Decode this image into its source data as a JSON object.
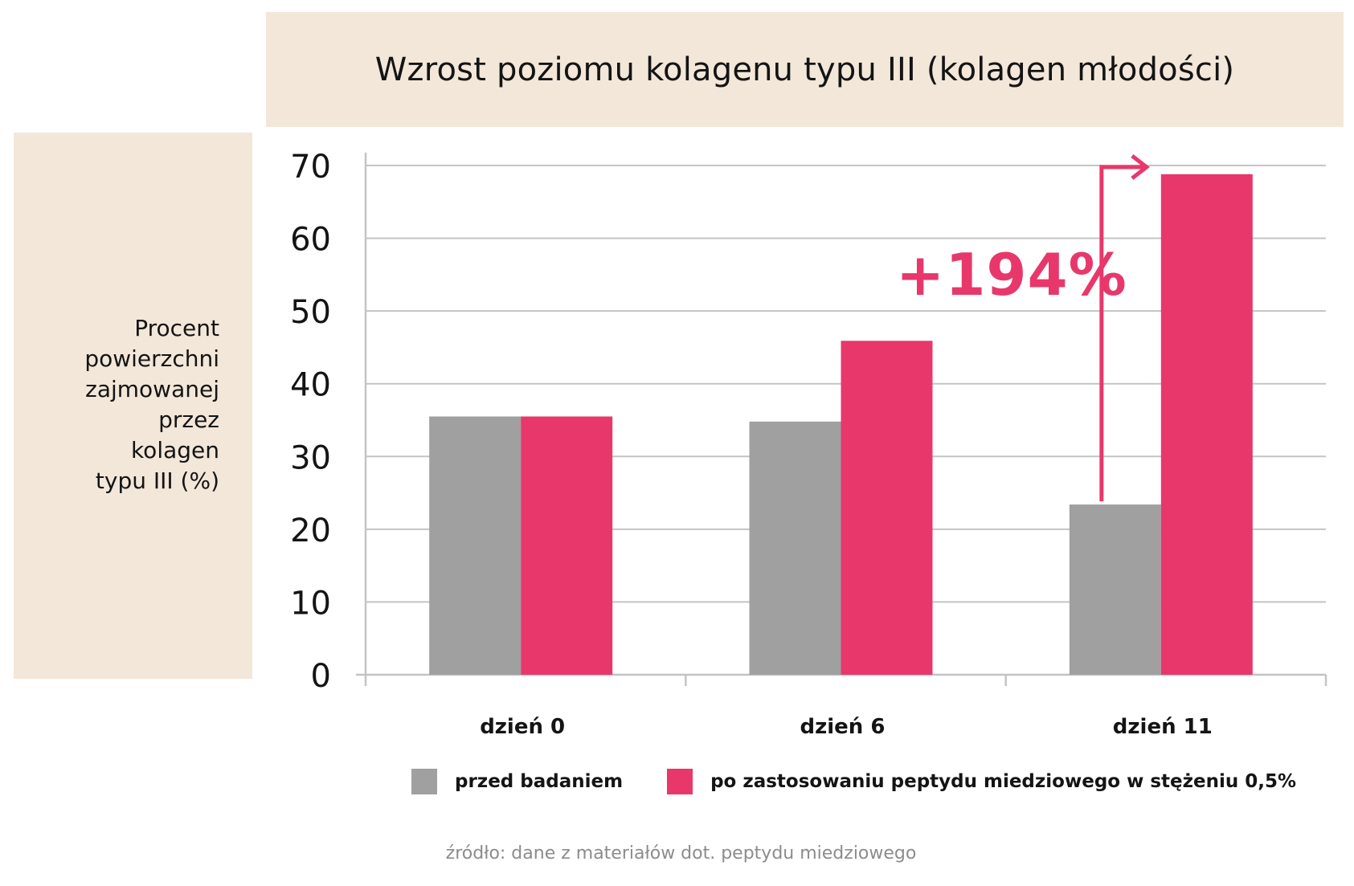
{
  "chart_data": {
    "type": "bar",
    "title": "Wzrost poziomu kolagenu typu III (kolagen młodości)",
    "ylabel": "Procent\npowierzchni\nzajmowanej\nprzez\nkolagen\ntypu III (%)",
    "xlabel": "",
    "categories": [
      "dzień 0",
      "dzień 6",
      "dzień 11"
    ],
    "series": [
      {
        "name": "przed badaniem",
        "values": [
          35.5,
          34.8,
          23.4
        ],
        "color": "#a0a0a0"
      },
      {
        "name": "po zastosowaniu peptydu miedziowego w stężeniu 0,5%",
        "values": [
          35.5,
          45.9,
          68.8
        ],
        "color": "#e8386b"
      }
    ],
    "ylim": [
      0,
      70
    ],
    "yticks": [
      "0",
      "10",
      "20",
      "30",
      "40",
      "50",
      "60",
      "70"
    ],
    "grid": true,
    "legend": "bottom",
    "annotation": "+194%",
    "source": "źródło: dane z materiałów dot. peptydu miedziowego"
  },
  "colors": {
    "accent": "#e8386b",
    "gray": "#a0a0a0",
    "beige": "#f3e7da",
    "grid": "#c4c4c4"
  }
}
